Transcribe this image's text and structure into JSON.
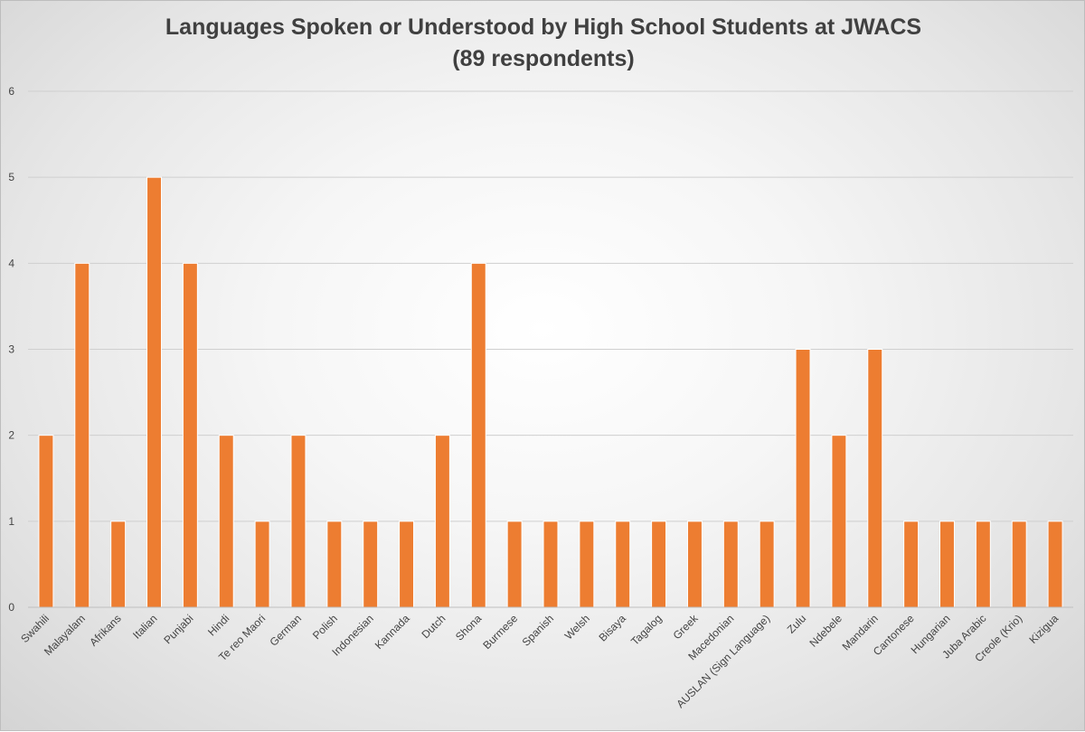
{
  "chart_data": {
    "type": "bar",
    "title": "Languages Spoken or Understood by High School Students at JWACS",
    "subtitle": "(89 respondents)",
    "xlabel": "",
    "ylabel": "",
    "ylim": [
      0,
      6
    ],
    "yticks": [
      0,
      1,
      2,
      3,
      4,
      5,
      6
    ],
    "grid": true,
    "bar_color": "#ed7d31",
    "categories": [
      "Swahili",
      "Malayalam",
      "Afrikans",
      "Italian",
      "Punjabi",
      "Hindi",
      "Te reo Maori",
      "German",
      "Polish",
      "Indonesian",
      "Kannada",
      "Dutch",
      "Shona",
      "Burmese",
      "Spanish",
      "Welsh",
      "Bisaya",
      "Tagalog",
      "Greek",
      "Macedonian",
      "AUSLAN (Sign Language)",
      "Zulu",
      "Ndebele",
      "Mandarin",
      "Cantonese",
      "Hungarian",
      "Juba Arabic",
      "Creole (Krio)",
      "Kizigua"
    ],
    "values": [
      2,
      4,
      1,
      5,
      4,
      2,
      1,
      2,
      1,
      1,
      1,
      2,
      4,
      1,
      1,
      1,
      1,
      1,
      1,
      1,
      1,
      3,
      2,
      3,
      1,
      1,
      1,
      1,
      1
    ]
  }
}
